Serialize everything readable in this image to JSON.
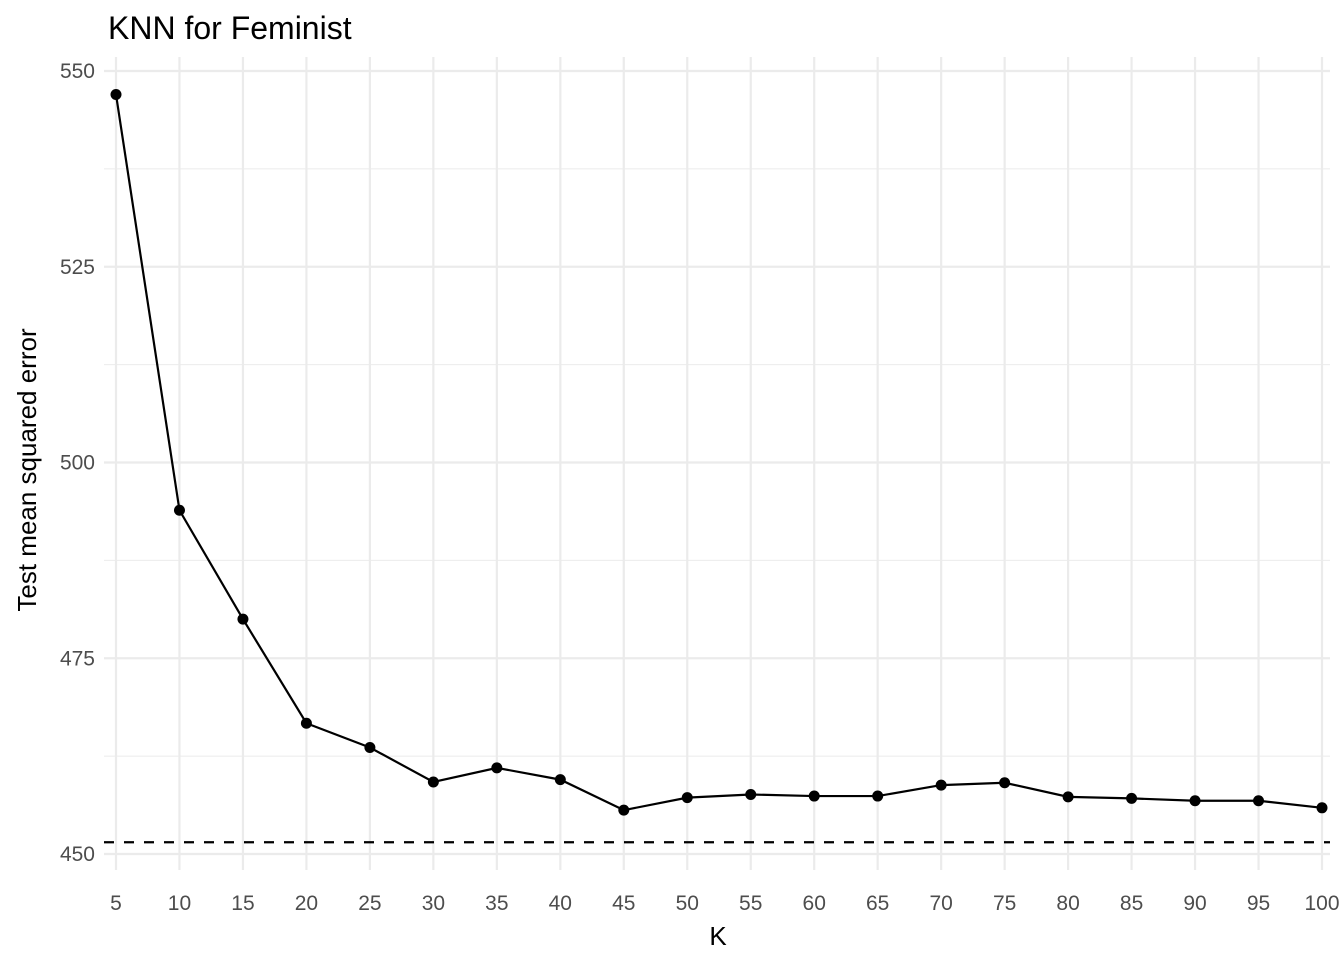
{
  "chart_data": {
    "type": "line",
    "title": "KNN for Feminist",
    "xlabel": "K",
    "ylabel": "Test mean squared error",
    "x": [
      5,
      10,
      15,
      20,
      25,
      30,
      35,
      40,
      45,
      50,
      55,
      60,
      65,
      70,
      75,
      80,
      85,
      90,
      95,
      100
    ],
    "series": [
      {
        "values": [
          547.0,
          493.9,
          480.0,
          466.7,
          463.6,
          459.2,
          461.0,
          459.5,
          455.6,
          457.2,
          457.6,
          457.4,
          457.4,
          458.8,
          459.1,
          457.3,
          457.1,
          456.8,
          456.8,
          455.9
        ]
      }
    ],
    "reference_line": {
      "y": 451.5,
      "style": "dashed"
    },
    "xticks": [
      5,
      10,
      15,
      20,
      25,
      30,
      35,
      40,
      45,
      50,
      55,
      60,
      65,
      70,
      75,
      80,
      85,
      90,
      95,
      100
    ],
    "yticks": [
      450,
      475,
      500,
      525,
      550
    ],
    "xlim": [
      5,
      100
    ],
    "ylim": [
      450,
      550
    ],
    "grid": true,
    "line_color": "#000000",
    "grid_color": "#ebebeb"
  }
}
